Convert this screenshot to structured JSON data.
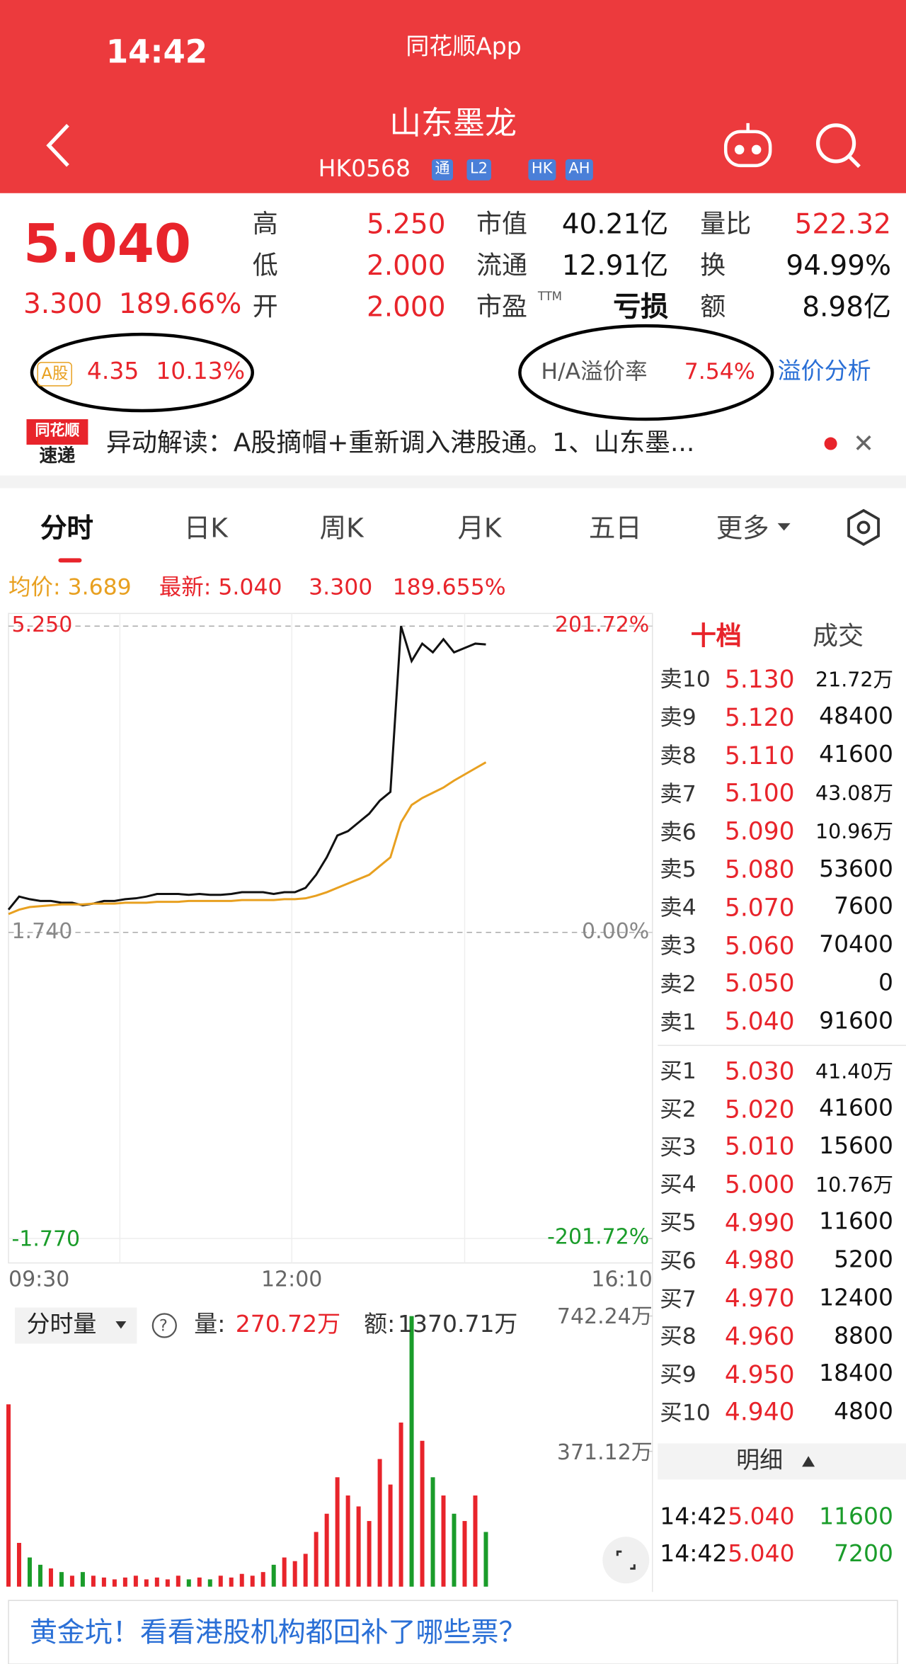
{
  "status_bar": {
    "time": "14:42",
    "app": "同花顺App"
  },
  "header": {
    "title": "山东墨龙",
    "code": "HK0568",
    "badges": [
      "通",
      "L2",
      "HK",
      "AH"
    ]
  },
  "quote": {
    "price": "5.040",
    "change": "3.300",
    "change_pct": "189.66%",
    "stats": [
      {
        "label": "高",
        "value": "5.250"
      },
      {
        "label": "低",
        "value": "2.000"
      },
      {
        "label": "开",
        "value": "2.000"
      },
      {
        "label": "市值",
        "value": "40.21亿"
      },
      {
        "label": "流通",
        "value": "12.91亿"
      },
      {
        "label": "市盈",
        "sup": "TTM",
        "value": "亏损"
      },
      {
        "label": "量比",
        "value": "522.32"
      },
      {
        "label": "换",
        "value": "94.99%"
      },
      {
        "label": "额",
        "value": "8.98亿"
      }
    ]
  },
  "a_share": {
    "tag": "A股",
    "price": "4.35",
    "pct": "10.13%"
  },
  "premium": {
    "label": "H/A溢价率",
    "value": "7.54%",
    "link": "溢价分析"
  },
  "news": {
    "logo_top": "同花顺",
    "logo_bottom": "速递",
    "text": "异动解读：A股摘帽+重新调入港股通。1、山东墨..."
  },
  "tabs": [
    "分时",
    "日K",
    "周K",
    "月K",
    "五日",
    "更多"
  ],
  "chart": {
    "type": "line",
    "legend": [
      "均价: 3.689",
      "最新: 5.040",
      "3.300",
      "189.655%"
    ],
    "ylim": [
      -1.77,
      5.25
    ],
    "yticks": [
      {
        "value": 5.25,
        "label": "5.250"
      },
      {
        "value": 1.74,
        "label": "1.740"
      },
      {
        "value": -1.77,
        "label": "-1.770"
      }
    ],
    "y2lim": [
      -201.72,
      201.72
    ],
    "y2ticks": [
      {
        "value": 201.72,
        "label": "201.72%"
      },
      {
        "value": 0,
        "label": "0.00%"
      },
      {
        "value": -201.72,
        "label": "-201.72%"
      }
    ],
    "xticks": [
      "09:30",
      "12:00",
      "16:10"
    ],
    "series": [
      {
        "color": "#111111",
        "values": [
          2.0,
          2.15,
          2.12,
          2.1,
          2.1,
          2.08,
          2.08,
          2.05,
          2.07,
          2.1,
          2.1,
          2.12,
          2.13,
          2.15,
          2.18,
          2.18,
          2.18,
          2.17,
          2.18,
          2.17,
          2.17,
          2.18,
          2.2,
          2.2,
          2.2,
          2.18,
          2.2,
          2.2,
          2.25,
          2.4,
          2.6,
          2.85,
          2.9,
          3.0,
          3.1,
          3.25,
          3.35,
          5.25,
          4.85,
          5.05,
          4.95,
          5.1,
          4.95,
          5.0,
          5.05,
          5.04
        ]
      },
      {
        "color": "#e8a020",
        "values": [
          1.95,
          2.0,
          2.03,
          2.04,
          2.05,
          2.06,
          2.06,
          2.06,
          2.07,
          2.07,
          2.07,
          2.08,
          2.08,
          2.08,
          2.09,
          2.09,
          2.09,
          2.1,
          2.1,
          2.1,
          2.1,
          2.1,
          2.11,
          2.11,
          2.11,
          2.11,
          2.12,
          2.12,
          2.13,
          2.16,
          2.2,
          2.25,
          2.3,
          2.35,
          2.4,
          2.5,
          2.6,
          3.0,
          3.2,
          3.28,
          3.34,
          3.4,
          3.48,
          3.55,
          3.62,
          3.689
        ]
      }
    ]
  },
  "volume": {
    "dropdown": "分时量",
    "vol_label": "量:",
    "vol": "270.72万",
    "amt_label": "额:",
    "amt": "1370.71万",
    "ylim": [
      0,
      742.24
    ],
    "yticks": [
      {
        "value": 742.24,
        "label": "742.24万"
      },
      {
        "value": 371.12,
        "label": "371.12万"
      }
    ],
    "values": [
      500,
      120,
      80,
      60,
      50,
      40,
      30,
      40,
      30,
      25,
      20,
      25,
      30,
      20,
      25,
      20,
      30,
      20,
      25,
      20,
      30,
      25,
      35,
      30,
      40,
      60,
      80,
      70,
      90,
      150,
      200,
      300,
      250,
      220,
      180,
      350,
      280,
      450,
      742,
      400,
      300,
      250,
      200,
      180,
      250,
      150
    ]
  },
  "book": {
    "tabs": [
      "十档",
      "成交"
    ],
    "asks": [
      [
        "卖10",
        "5.130",
        "21.72万"
      ],
      [
        "卖9",
        "5.120",
        "48400"
      ],
      [
        "卖8",
        "5.110",
        "41600"
      ],
      [
        "卖7",
        "5.100",
        "43.08万"
      ],
      [
        "卖6",
        "5.090",
        "10.96万"
      ],
      [
        "卖5",
        "5.080",
        "53600"
      ],
      [
        "卖4",
        "5.070",
        "7600"
      ],
      [
        "卖3",
        "5.060",
        "70400"
      ],
      [
        "卖2",
        "5.050",
        "0"
      ],
      [
        "卖1",
        "5.040",
        "91600"
      ]
    ],
    "bids": [
      [
        "买1",
        "5.030",
        "41.40万"
      ],
      [
        "买2",
        "5.020",
        "41600"
      ],
      [
        "买3",
        "5.010",
        "15600"
      ],
      [
        "买4",
        "5.000",
        "10.76万"
      ],
      [
        "买5",
        "4.990",
        "11600"
      ],
      [
        "买6",
        "4.980",
        "5200"
      ],
      [
        "买7",
        "4.970",
        "12400"
      ],
      [
        "买8",
        "4.960",
        "8800"
      ],
      [
        "买9",
        "4.950",
        "18400"
      ],
      [
        "买10",
        "4.940",
        "4800"
      ]
    ],
    "detail": "明细",
    "trades": [
      [
        "14:42",
        "5.040",
        "11600"
      ],
      [
        "14:42",
        "5.040",
        "7200"
      ]
    ]
  },
  "banner": "黄金坑！看看港股机构都回补了哪些票？"
}
